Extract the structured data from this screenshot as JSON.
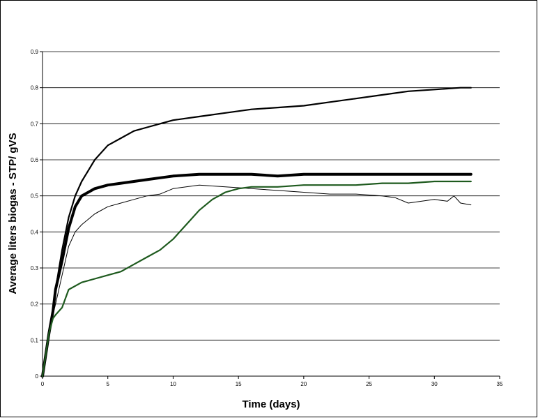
{
  "chart_data": {
    "type": "line",
    "title": "",
    "xlabel": "Time (days)",
    "ylabel": "Average liters biogas - STP/ gVS",
    "xlim": [
      0,
      35
    ],
    "ylim": [
      0,
      0.9
    ],
    "xticks": [
      0,
      5,
      10,
      15,
      20,
      25,
      30,
      35
    ],
    "yticks": [
      0,
      0.1,
      0.2,
      0.3,
      0.4,
      0.5,
      0.6,
      0.7,
      0.8,
      0.9
    ],
    "grid": "horizontal major gridlines",
    "legend": "none",
    "series": [
      {
        "color": "#000000",
        "style": "medium",
        "x": [
          0,
          0.25,
          0.5,
          0.8,
          1.0,
          1.5,
          2.0,
          2.5,
          3.0,
          4.0,
          5.0,
          6.0,
          7.0,
          8.0,
          9.0,
          10.0,
          12.0,
          14.0,
          16.0,
          18.0,
          20.0,
          22.0,
          24.0,
          26.0,
          28.0,
          30.0,
          32.0,
          32.8
        ],
        "y": [
          0.0,
          0.06,
          0.12,
          0.18,
          0.24,
          0.35,
          0.44,
          0.5,
          0.54,
          0.6,
          0.64,
          0.66,
          0.68,
          0.69,
          0.7,
          0.71,
          0.72,
          0.73,
          0.74,
          0.745,
          0.75,
          0.76,
          0.77,
          0.78,
          0.79,
          0.795,
          0.8,
          0.8
        ]
      },
      {
        "color": "#000000",
        "style": "thick",
        "x": [
          0,
          0.25,
          0.5,
          0.8,
          1.0,
          1.5,
          2.0,
          2.5,
          3.0,
          4.0,
          5.0,
          6.0,
          7.0,
          8.0,
          9.0,
          10.0,
          12.0,
          14.0,
          16.0,
          18.0,
          20.0,
          22.0,
          24.0,
          26.0,
          28.0,
          30.0,
          32.0,
          32.8
        ],
        "y": [
          0.0,
          0.06,
          0.12,
          0.18,
          0.24,
          0.32,
          0.41,
          0.47,
          0.5,
          0.52,
          0.53,
          0.535,
          0.54,
          0.545,
          0.55,
          0.555,
          0.56,
          0.56,
          0.56,
          0.555,
          0.56,
          0.56,
          0.56,
          0.56,
          0.56,
          0.56,
          0.56,
          0.56
        ]
      },
      {
        "color": "#000000",
        "style": "thin",
        "x": [
          0,
          0.25,
          0.5,
          0.8,
          1.0,
          1.5,
          2.0,
          2.5,
          3.0,
          4.0,
          5.0,
          6.0,
          7.0,
          8.0,
          9.0,
          10.0,
          12.0,
          14.0,
          16.0,
          18.0,
          20.0,
          22.0,
          24.0,
          26.0,
          27.0,
          28.0,
          29.0,
          30.0,
          31.0,
          31.5,
          32.0,
          32.8
        ],
        "y": [
          0.0,
          0.06,
          0.12,
          0.17,
          0.2,
          0.28,
          0.36,
          0.4,
          0.42,
          0.45,
          0.47,
          0.48,
          0.49,
          0.5,
          0.505,
          0.52,
          0.53,
          0.525,
          0.52,
          0.515,
          0.51,
          0.505,
          0.505,
          0.5,
          0.495,
          0.48,
          0.485,
          0.49,
          0.485,
          0.5,
          0.48,
          0.475
        ]
      },
      {
        "color": "#1e5a1e",
        "style": "medium",
        "x": [
          0,
          0.25,
          0.5,
          0.8,
          1.0,
          1.5,
          2.0,
          3.0,
          4.0,
          5.0,
          6.0,
          7.0,
          8.0,
          9.0,
          10.0,
          11.0,
          12.0,
          13.0,
          14.0,
          15.0,
          16.0,
          18.0,
          20.0,
          22.0,
          24.0,
          26.0,
          28.0,
          30.0,
          32.0,
          32.8
        ],
        "y": [
          0.0,
          0.06,
          0.12,
          0.16,
          0.17,
          0.19,
          0.24,
          0.26,
          0.27,
          0.28,
          0.29,
          0.31,
          0.33,
          0.35,
          0.38,
          0.42,
          0.46,
          0.49,
          0.51,
          0.52,
          0.525,
          0.525,
          0.53,
          0.53,
          0.53,
          0.535,
          0.535,
          0.54,
          0.54,
          0.54
        ]
      }
    ]
  }
}
